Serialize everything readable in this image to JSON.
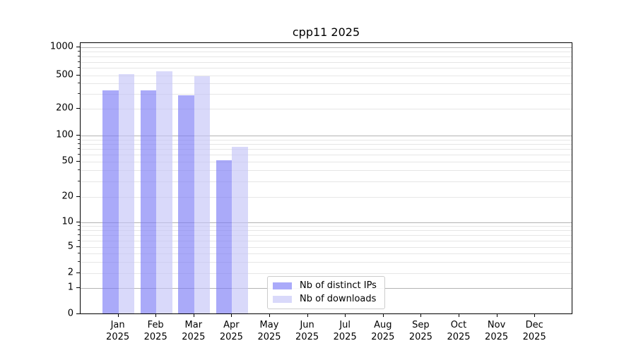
{
  "chart_data": {
    "type": "bar",
    "title": "cpp11 2025",
    "xlabel": "",
    "ylabel": "",
    "yscale": "symlog",
    "ylim": [
      0,
      1000
    ],
    "yticks": [
      0,
      1,
      2,
      5,
      10,
      20,
      50,
      100,
      200,
      500,
      1000
    ],
    "grid": "horizontal major and minor gridlines, log minor subdivisions",
    "legend_position": "lower center inside plot area",
    "categories": [
      {
        "month": "Jan",
        "year": "2025"
      },
      {
        "month": "Feb",
        "year": "2025"
      },
      {
        "month": "Mar",
        "year": "2025"
      },
      {
        "month": "Apr",
        "year": "2025"
      },
      {
        "month": "May",
        "year": "2025"
      },
      {
        "month": "Jun",
        "year": "2025"
      },
      {
        "month": "Jul",
        "year": "2025"
      },
      {
        "month": "Aug",
        "year": "2025"
      },
      {
        "month": "Sep",
        "year": "2025"
      },
      {
        "month": "Oct",
        "year": "2025"
      },
      {
        "month": "Nov",
        "year": "2025"
      },
      {
        "month": "Dec",
        "year": "2025"
      }
    ],
    "series": [
      {
        "name": "Nb of distinct IPs",
        "color": "#aaaafa",
        "values": [
          320,
          320,
          280,
          50,
          null,
          null,
          null,
          null,
          null,
          null,
          null,
          null
        ]
      },
      {
        "name": "Nb of downloads",
        "color": "#d9d9fa",
        "values": [
          500,
          540,
          475,
          72,
          null,
          null,
          null,
          null,
          null,
          null,
          null,
          null
        ]
      }
    ]
  },
  "colors": {
    "background": "#ffffff",
    "major_gridline": "#b3b3b3",
    "minor_gridline": "#e6e6e6",
    "axis": "#000000",
    "legend_border": "#cccccc"
  }
}
